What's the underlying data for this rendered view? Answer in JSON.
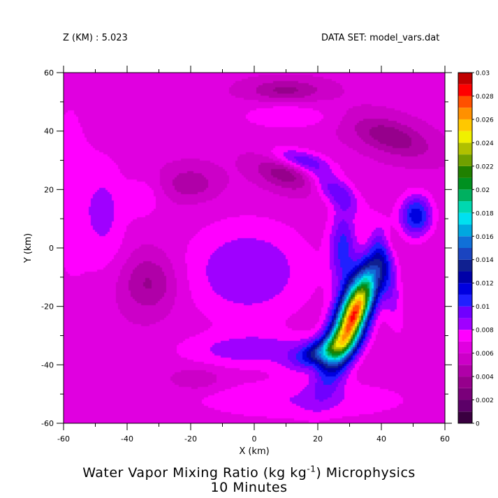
{
  "header": {
    "z_label": "Z (KM) : 5.023",
    "dataset_label": "DATA SET: model_vars.dat"
  },
  "title": {
    "line1_before": "Water Vapor Mixing Ratio (kg kg",
    "line1_sup": "-1",
    "line1_after": ") Microphysics",
    "line2": "10 Minutes"
  },
  "chart_data": {
    "type": "heatmap",
    "subtype": "filled-contour",
    "xlabel": "X (km)",
    "ylabel": "Y (km)",
    "xlim": [
      -60,
      60
    ],
    "ylim": [
      -60,
      60
    ],
    "x_ticks": [
      -60,
      -40,
      -20,
      0,
      20,
      40,
      60
    ],
    "y_ticks": [
      -60,
      -40,
      -20,
      0,
      20,
      40,
      60
    ],
    "colorbar": {
      "levels": [
        0,
        0.001,
        0.002,
        0.003,
        0.004,
        0.005,
        0.006,
        0.007,
        0.008,
        0.009,
        0.01,
        0.011,
        0.012,
        0.013,
        0.014,
        0.015,
        0.016,
        0.017,
        0.018,
        0.019,
        0.02,
        0.021,
        0.022,
        0.023,
        0.024,
        0.025,
        0.026,
        0.027,
        0.028,
        0.029,
        0.03
      ],
      "tick_labels": [
        "0",
        "0.002",
        "0.004",
        "0.006",
        "0.008",
        "0.01",
        "0.012",
        "0.014",
        "0.016",
        "0.018",
        "0.02",
        "0.022",
        "0.024",
        "0.026",
        "0.028",
        "0.03"
      ],
      "colors": [
        "#3a0040",
        "#5c0068",
        "#7a007a",
        "#96008c",
        "#b000a8",
        "#cc00c8",
        "#e000e0",
        "#ff00ff",
        "#a000ff",
        "#7000ff",
        "#2020ff",
        "#0000e0",
        "#0000a8",
        "#102090",
        "#1a44c0",
        "#1070d8",
        "#00a8e0",
        "#00e0f0",
        "#00d8b0",
        "#00b060",
        "#009020",
        "#208000",
        "#70a000",
        "#b0c000",
        "#f0f000",
        "#ffc800",
        "#ff9000",
        "#ff5000",
        "#ff0000",
        "#c00000",
        "#700000"
      ]
    },
    "background_value": 0.0062,
    "features": [
      {
        "name": "main band",
        "x": 31,
        "y": -23,
        "sx": 3.5,
        "sy": 13,
        "angle_deg": -20,
        "amplitude": 0.0185
      },
      {
        "name": "main band tail",
        "x": 22,
        "y": -35,
        "sx": 7,
        "sy": 3,
        "angle_deg": 25,
        "amplitude": 0.006
      },
      {
        "name": "peak",
        "x": 32,
        "y": -23,
        "sx": 2,
        "sy": 7,
        "angle_deg": -20,
        "amplitude": 0.0035
      },
      {
        "name": "arc NW",
        "x": 14,
        "y": 30,
        "sx": 7,
        "sy": 2.6,
        "angle_deg": -15,
        "amplitude": 0.004
      },
      {
        "name": "arc N",
        "x": 25,
        "y": 20,
        "sx": 7,
        "sy": 3,
        "angle_deg": -40,
        "amplitude": 0.0032
      },
      {
        "name": "east cell",
        "x": 51,
        "y": 11,
        "sx": 3.5,
        "sy": 5,
        "angle_deg": 0,
        "amplitude": 0.0055
      },
      {
        "name": "east band",
        "x": 42,
        "y": -10,
        "sx": 2.5,
        "sy": 12,
        "angle_deg": 10,
        "amplitude": 0.0028
      },
      {
        "name": "inner ring",
        "x": 28,
        "y": 0,
        "sx": 3,
        "sy": 10,
        "angle_deg": 0,
        "amplitude": 0.004
      },
      {
        "name": "center void",
        "x": -2,
        "y": -8,
        "sx": 14,
        "sy": 12,
        "angle_deg": 0,
        "amplitude": 0.0028
      },
      {
        "name": "south arc",
        "x": 0,
        "y": -35,
        "sx": 16,
        "sy": 4,
        "angle_deg": 0,
        "amplitude": 0.0024
      },
      {
        "name": "south low",
        "x": 15,
        "y": -52,
        "sx": 25,
        "sy": 5,
        "angle_deg": 0,
        "amplitude": 0.0018
      },
      {
        "name": "NE low",
        "x": 10,
        "y": 45,
        "sx": 10,
        "sy": 3,
        "angle_deg": 0,
        "amplitude": 0.0018
      },
      {
        "name": "west low",
        "x": -47,
        "y": 12,
        "sx": 5,
        "sy": 14,
        "angle_deg": 0,
        "amplitude": 0.002
      },
      {
        "name": "west patch",
        "x": -35,
        "y": 17,
        "sx": 4,
        "sy": 5,
        "angle_deg": 0,
        "amplitude": 0.0015
      },
      {
        "name": "west edge",
        "x": -58,
        "y": 20,
        "sx": 5,
        "sy": 30,
        "angle_deg": 0,
        "amplitude": 0.0012
      },
      {
        "name": "dry NW",
        "x": 10,
        "y": 26,
        "sx": 7,
        "sy": 4,
        "angle_deg": -20,
        "amplitude": -0.0032
      },
      {
        "name": "dry W",
        "x": -33,
        "y": -12,
        "sx": 6,
        "sy": 7,
        "angle_deg": 0,
        "amplitude": -0.0025
      },
      {
        "name": "dry NE",
        "x": 43,
        "y": 38,
        "sx": 9,
        "sy": 4,
        "angle_deg": -20,
        "amplitude": -0.003
      },
      {
        "name": "dry N",
        "x": 10,
        "y": 54,
        "sx": 8,
        "sy": 2.5,
        "angle_deg": 0,
        "amplitude": -0.0025
      },
      {
        "name": "dry NNW",
        "x": -20,
        "y": 22,
        "sx": 6,
        "sy": 4,
        "angle_deg": 0,
        "amplitude": -0.002
      },
      {
        "name": "dry east band",
        "x": 43,
        "y": 2,
        "sx": 2,
        "sy": 4,
        "angle_deg": 0,
        "amplitude": -0.0015
      },
      {
        "name": "dry S",
        "x": -18,
        "y": -45,
        "sx": 5,
        "sy": 2.5,
        "angle_deg": 0,
        "amplitude": -0.0015
      }
    ]
  }
}
